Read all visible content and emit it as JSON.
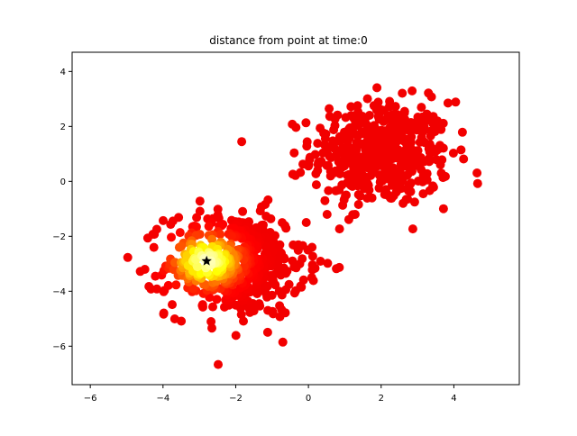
{
  "chart_data": {
    "type": "scatter",
    "title": "distance from point at time:0",
    "xlabel": "",
    "ylabel": "",
    "xlim": [
      -6.5,
      5.8
    ],
    "ylim": [
      -7.4,
      4.7
    ],
    "xticks": [
      -6,
      -4,
      -2,
      0,
      2,
      4
    ],
    "yticks": [
      -6,
      -4,
      -2,
      0,
      2,
      4
    ],
    "xtick_labels": [
      "−6",
      "−4",
      "−2",
      "0",
      "2",
      "4"
    ],
    "ytick_labels": [
      "−6",
      "−4",
      "−2",
      "0",
      "2",
      "4"
    ],
    "grid": false,
    "legend": "none",
    "colormap": "hot",
    "color_encodes": "distance from reference point (dark red = far, yellow = near)",
    "reference_point": {
      "x": -2.8,
      "y": -2.9,
      "marker": "star",
      "color": "#000000"
    },
    "clusters": [
      {
        "center": [
          2.0,
          1.0
        ],
        "std": 0.95,
        "count": 500
      },
      {
        "center": [
          -2.0,
          -3.0
        ],
        "std": 0.95,
        "count": 500
      }
    ],
    "colors": {
      "far": "#800000",
      "mid": "#ff2a00",
      "near": "#ffff80"
    }
  }
}
